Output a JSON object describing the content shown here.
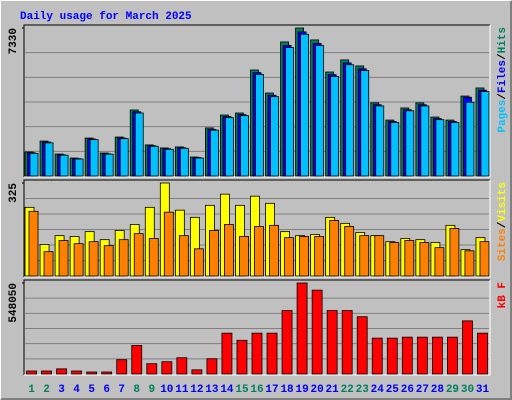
{
  "chart_data": {
    "type": "bar",
    "title": "Daily usage for March 2025",
    "legend_separator": "/",
    "categories": [
      "1",
      "2",
      "3",
      "4",
      "5",
      "6",
      "7",
      "8",
      "9",
      "10",
      "11",
      "12",
      "13",
      "14",
      "15",
      "16",
      "17",
      "18",
      "19",
      "20",
      "21",
      "22",
      "23",
      "24",
      "25",
      "26",
      "27",
      "28",
      "29",
      "30",
      "31"
    ],
    "category_colors": [
      "#00805c",
      "#00805c",
      "#0000ff",
      "#0000ff",
      "#0000ff",
      "#0000ff",
      "#0000ff",
      "#00805c",
      "#00805c",
      "#0000ff",
      "#0000ff",
      "#0000ff",
      "#0000ff",
      "#0000ff",
      "#00805c",
      "#00805c",
      "#0000ff",
      "#0000ff",
      "#0000ff",
      "#0000ff",
      "#0000ff",
      "#00805c",
      "#00805c",
      "#0000ff",
      "#0000ff",
      "#0000ff",
      "#0000ff",
      "#0000ff",
      "#00805c",
      "#00805c",
      "#0000ff"
    ],
    "panels": [
      {
        "ylim": [
          0,
          7330
        ],
        "yticks": [
          7330
        ],
        "series": [
          {
            "name": "Hits",
            "color": "#00805c",
            "values": [
              1190,
              1730,
              1090,
              890,
              1880,
              1140,
              1930,
              3270,
              1540,
              1390,
              1440,
              940,
              2380,
              3020,
              3120,
              5250,
              4110,
              6640,
              7330,
              6740,
              5150,
              5750,
              5450,
              3620,
              2770,
              3370,
              3620,
              2920,
              2770,
              3960,
              4360
            ]
          },
          {
            "name": "Files",
            "color": "#0000ff",
            "values": [
              1150,
              1680,
              1050,
              860,
              1830,
              1100,
              1880,
              3180,
              1500,
              1350,
              1400,
              910,
              2310,
              2940,
              3040,
              5120,
              4000,
              6470,
              7140,
              6570,
              5020,
              5600,
              5310,
              3530,
              2700,
              3280,
              3530,
              2840,
              2700,
              3900,
              4250
            ]
          },
          {
            "name": "Pages",
            "color": "#00c0ff",
            "values": [
              1120,
              1640,
              1030,
              840,
              1800,
              1080,
              1850,
              3120,
              1470,
              1320,
              1370,
              890,
              2270,
              2890,
              2990,
              5030,
              3930,
              6360,
              7020,
              6460,
              4930,
              5510,
              5220,
              3470,
              2650,
              3230,
              3470,
              2790,
              2650,
              3650,
              4180
            ]
          }
        ]
      },
      {
        "ylim": [
          0,
          325
        ],
        "yticks": [
          325
        ],
        "series": [
          {
            "name": "Visits",
            "color": "#ffff00",
            "values": [
              240,
              110,
              141,
              138,
              155,
              127,
              159,
              180,
              240,
              325,
              230,
              205,
              247,
              286,
              247,
              279,
              254,
              155,
              141,
              145,
              205,
              184,
              152,
              141,
              120,
              131,
              127,
              117,
              177,
              92,
              134
            ]
          },
          {
            "name": "Sites",
            "color": "#ff8000",
            "values": [
              226,
              85,
              124,
              113,
              120,
              106,
              127,
              148,
              131,
              223,
              141,
              95,
              159,
              180,
              138,
              173,
              177,
              134,
              138,
              138,
              194,
              173,
              141,
              141,
              117,
              124,
              117,
              99,
              166,
              88,
              120
            ]
          }
        ]
      },
      {
        "ylim": [
          0,
          548050
        ],
        "yticks": [
          548050
        ],
        "series": [
          {
            "name": "kB F",
            "color": "#ff0000",
            "values": [
              18000,
              18000,
              31000,
              18000,
              12000,
              12000,
              86000,
              172000,
              62000,
              74000,
              98000,
              25000,
              92000,
              246000,
              203000,
              246000,
              246000,
              382000,
              548050,
              505000,
              382000,
              382000,
              345000,
              216000,
              216000,
              222000,
              222000,
              222000,
              222000,
              320000,
              246000
            ]
          }
        ]
      }
    ]
  }
}
